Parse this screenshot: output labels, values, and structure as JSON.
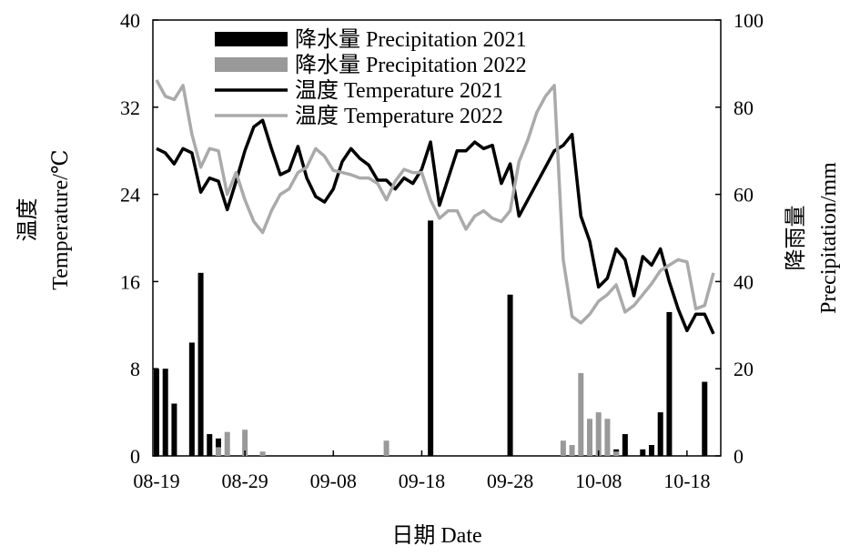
{
  "chart_data": {
    "type": "bar+line",
    "title": "",
    "xlabel": "日期  Date",
    "ylabel_left": [
      "温度",
      "Temperature/℃"
    ],
    "ylabel_right": [
      "降雨量",
      "Precipitation/mm"
    ],
    "ylim_left": [
      0,
      40
    ],
    "ylim_right": [
      0,
      100
    ],
    "yticks_left": [
      "0",
      "8",
      "16",
      "24",
      "32",
      "40"
    ],
    "yticks_right": [
      "0",
      "20",
      "40",
      "60",
      "80",
      "100"
    ],
    "x_start_day": 0,
    "x_end_day": 63,
    "xticks": [
      {
        "day": 0,
        "label": "08-19"
      },
      {
        "day": 10,
        "label": "08-29"
      },
      {
        "day": 20,
        "label": "09-08"
      },
      {
        "day": 30,
        "label": "09-18"
      },
      {
        "day": 40,
        "label": "09-28"
      },
      {
        "day": 50,
        "label": "10-08"
      },
      {
        "day": 60,
        "label": "10-18"
      }
    ],
    "legend_position": "top",
    "series": [
      {
        "name": "降水量  Precipitation 2021",
        "kind": "bar",
        "axis": "right",
        "color": "#000000",
        "points": [
          [
            0,
            20
          ],
          [
            1,
            20
          ],
          [
            2,
            12
          ],
          [
            4,
            26
          ],
          [
            5,
            42
          ],
          [
            6,
            5
          ],
          [
            7,
            4
          ],
          [
            31,
            54
          ],
          [
            40,
            37
          ],
          [
            52,
            1.5
          ],
          [
            53,
            5
          ],
          [
            55,
            1.5
          ],
          [
            56,
            2.5
          ],
          [
            57,
            10
          ],
          [
            58,
            33
          ],
          [
            62,
            17
          ]
        ]
      },
      {
        "name": "降水量  Precipitation 2022",
        "kind": "bar",
        "axis": "right",
        "color": "#999999",
        "points": [
          [
            7,
            2
          ],
          [
            8,
            5.5
          ],
          [
            10,
            6
          ],
          [
            12,
            1
          ],
          [
            26,
            3.5
          ],
          [
            46,
            3.5
          ],
          [
            47,
            2.5
          ],
          [
            48,
            19
          ],
          [
            49,
            8.5
          ],
          [
            50,
            10
          ],
          [
            51,
            8.5
          ],
          [
            52,
            1
          ]
        ]
      },
      {
        "name": "温度  Temperature 2021",
        "kind": "line",
        "axis": "left",
        "color": "#000000",
        "points": [
          [
            0,
            28.2
          ],
          [
            1,
            27.8
          ],
          [
            2,
            26.8
          ],
          [
            3,
            28.2
          ],
          [
            4,
            27.8
          ],
          [
            5,
            24.2
          ],
          [
            6,
            25.5
          ],
          [
            7,
            25.2
          ],
          [
            8,
            22.6
          ],
          [
            9,
            25.2
          ],
          [
            10,
            28
          ],
          [
            11,
            30.2
          ],
          [
            12,
            30.8
          ],
          [
            13,
            28.2
          ],
          [
            14,
            25.8
          ],
          [
            15,
            26.2
          ],
          [
            16,
            28.4
          ],
          [
            17,
            25.5
          ],
          [
            18,
            23.8
          ],
          [
            19,
            23.3
          ],
          [
            20,
            24.5
          ],
          [
            21,
            27
          ],
          [
            22,
            28.2
          ],
          [
            23,
            27.3
          ],
          [
            24,
            26.7
          ],
          [
            25,
            25.3
          ],
          [
            26,
            25.3
          ],
          [
            27,
            24.5
          ],
          [
            28,
            25.5
          ],
          [
            29,
            25
          ],
          [
            30,
            26.3
          ],
          [
            31,
            28.8
          ],
          [
            32,
            23
          ],
          [
            33,
            25.5
          ],
          [
            34,
            28
          ],
          [
            35,
            28
          ],
          [
            36,
            28.8
          ],
          [
            37,
            28.2
          ],
          [
            38,
            28.5
          ],
          [
            39,
            25
          ],
          [
            40,
            26.8
          ],
          [
            41,
            22
          ],
          [
            42,
            23.5
          ],
          [
            43,
            25
          ],
          [
            44,
            26.5
          ],
          [
            45,
            28
          ],
          [
            46,
            28.5
          ],
          [
            47,
            29.5
          ],
          [
            48,
            22
          ],
          [
            49,
            19.7
          ],
          [
            50,
            15.5
          ],
          [
            51,
            16.3
          ],
          [
            52,
            19
          ],
          [
            53,
            18
          ],
          [
            54,
            14.7
          ],
          [
            55,
            18.3
          ],
          [
            56,
            17.5
          ],
          [
            57,
            19
          ],
          [
            58,
            16
          ],
          [
            59,
            13.5
          ],
          [
            60,
            11.5
          ],
          [
            61,
            13
          ],
          [
            62,
            13
          ],
          [
            63,
            11.2
          ]
        ]
      },
      {
        "name": "温度  Temperature 2022",
        "kind": "line",
        "axis": "left",
        "color": "#aaaaaa",
        "points": [
          [
            0,
            34.5
          ],
          [
            1,
            33
          ],
          [
            2,
            32.7
          ],
          [
            3,
            34
          ],
          [
            4,
            29.5
          ],
          [
            5,
            26.5
          ],
          [
            6,
            28.2
          ],
          [
            7,
            28
          ],
          [
            8,
            24
          ],
          [
            9,
            26
          ],
          [
            10,
            23.5
          ],
          [
            11,
            21.5
          ],
          [
            12,
            20.5
          ],
          [
            13,
            22.5
          ],
          [
            14,
            24
          ],
          [
            15,
            24.5
          ],
          [
            16,
            26
          ],
          [
            17,
            26.5
          ],
          [
            18,
            28.2
          ],
          [
            19,
            27.5
          ],
          [
            20,
            26.2
          ],
          [
            21,
            26
          ],
          [
            22,
            25.8
          ],
          [
            23,
            25.5
          ],
          [
            24,
            25.5
          ],
          [
            25,
            25
          ],
          [
            26,
            23.5
          ],
          [
            27,
            25.2
          ],
          [
            28,
            26.3
          ],
          [
            29,
            26
          ],
          [
            30,
            26
          ],
          [
            31,
            23.5
          ],
          [
            32,
            21.8
          ],
          [
            33,
            22.5
          ],
          [
            34,
            22.5
          ],
          [
            35,
            20.8
          ],
          [
            36,
            22
          ],
          [
            37,
            22.5
          ],
          [
            38,
            21.8
          ],
          [
            39,
            21.5
          ],
          [
            40,
            22.5
          ],
          [
            41,
            27
          ],
          [
            42,
            29
          ],
          [
            43,
            31.5
          ],
          [
            44,
            33
          ],
          [
            45,
            34
          ],
          [
            46,
            18
          ],
          [
            47,
            12.8
          ],
          [
            48,
            12.2
          ],
          [
            49,
            13
          ],
          [
            50,
            14.2
          ],
          [
            51,
            14.8
          ],
          [
            52,
            15.7
          ],
          [
            53,
            13.2
          ],
          [
            54,
            13.8
          ],
          [
            55,
            14.8
          ],
          [
            56,
            15.8
          ],
          [
            57,
            17
          ],
          [
            58,
            17.5
          ],
          [
            59,
            18
          ],
          [
            60,
            17.8
          ],
          [
            61,
            13.5
          ],
          [
            62,
            13.8
          ],
          [
            63,
            16.8
          ]
        ]
      }
    ]
  }
}
